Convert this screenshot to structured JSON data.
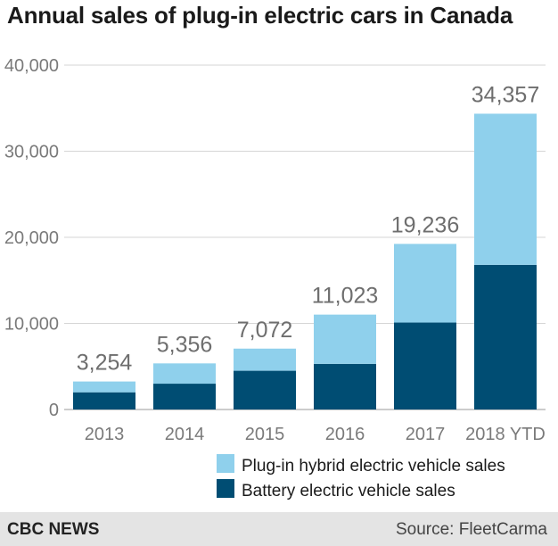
{
  "chart_data": {
    "type": "bar",
    "stacked": true,
    "title": "Annual sales of plug-in electric cars in Canada",
    "categories": [
      "2013",
      "2014",
      "2015",
      "2016",
      "2017",
      "2018 YTD"
    ],
    "series": [
      {
        "name": "Battery electric vehicle sales",
        "color": "#004d73",
        "values": [
          2000,
          3000,
          4500,
          5300,
          10100,
          16800
        ]
      },
      {
        "name": "Plug-in hybrid electric vehicle sales",
        "color": "#8fd0ec",
        "values": [
          1254,
          2356,
          2572,
          5723,
          9136,
          17557
        ]
      }
    ],
    "totals": [
      3254,
      5356,
      7072,
      11023,
      19236,
      34357
    ],
    "total_labels": [
      "3,254",
      "5,356",
      "7,072",
      "11,023",
      "19,236",
      "34,357"
    ],
    "y_ticks": [
      0,
      10000,
      20000,
      30000,
      40000
    ],
    "y_tick_labels": [
      "0",
      "10,000",
      "20,000",
      "30,000",
      "40,000"
    ],
    "ylim": [
      0,
      40000
    ],
    "xlabel": "",
    "ylabel": "",
    "grid": true,
    "legend_position": "bottom-right"
  },
  "footer": {
    "brand": "CBC NEWS",
    "source": "Source: FleetCarma"
  }
}
